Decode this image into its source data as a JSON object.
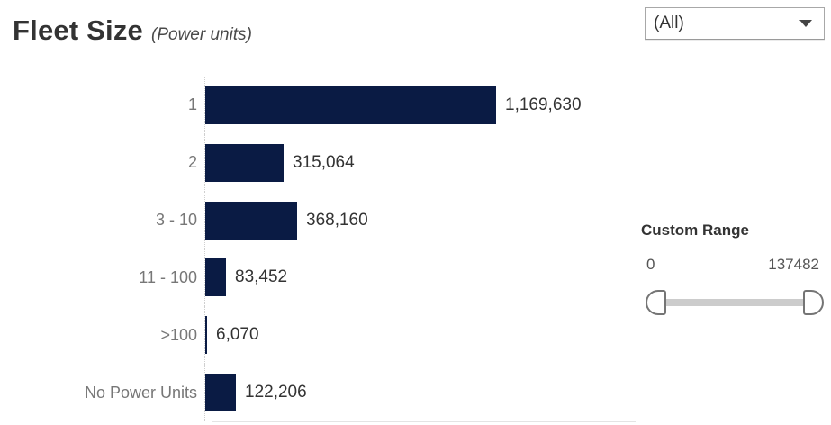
{
  "header": {
    "title": "Fleet Size",
    "subtitle": "(Power units)"
  },
  "filter_dropdown": {
    "selected_value": "(All)"
  },
  "chart_data": {
    "type": "bar",
    "orientation": "horizontal",
    "title": "Fleet Size (Power units)",
    "xlabel": "",
    "ylabel": "",
    "legend": false,
    "grid": false,
    "categories": [
      "1",
      "2",
      "3 - 10",
      "11 - 100",
      ">100",
      "No Power Units"
    ],
    "values": [
      1169630,
      315064,
      368160,
      83452,
      6070,
      122206
    ],
    "value_labels": [
      "1,169,630",
      "315,064",
      "368,160",
      "83,452",
      "6,070",
      "122,206"
    ],
    "bar_color": "#0a1b44",
    "category_label_color": "#777777",
    "value_label_color": "#333333"
  },
  "custom_range": {
    "label": "Custom Range",
    "min": "0",
    "max": "137482"
  }
}
